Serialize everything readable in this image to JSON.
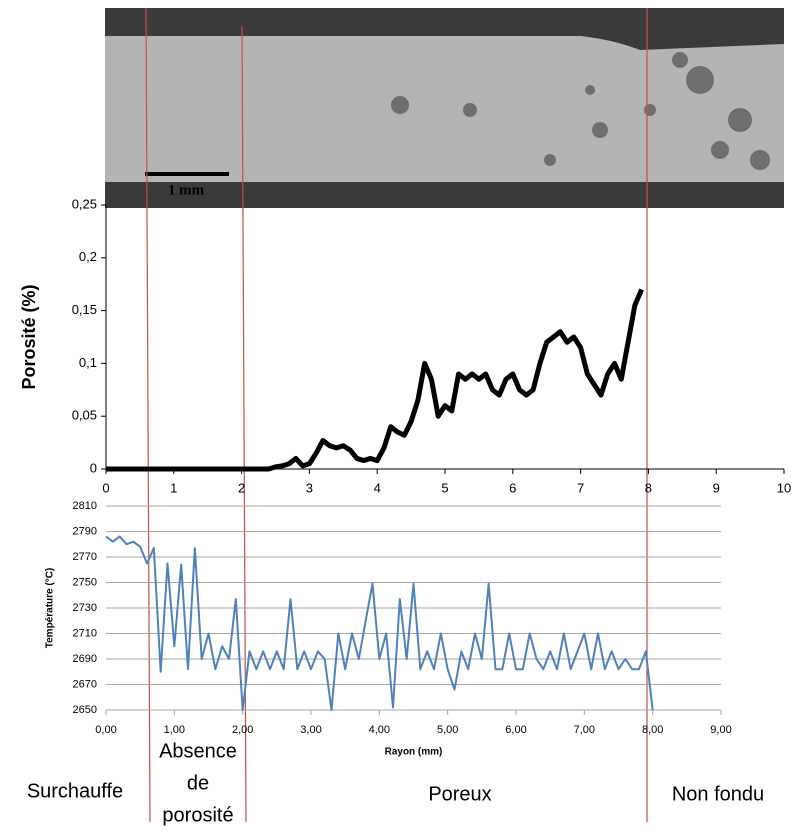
{
  "micrograph": {
    "scale_bar": "1 mm"
  },
  "zones": [
    {
      "lines": [
        "Surchauffe"
      ]
    },
    {
      "lines": [
        "Absence",
        "de",
        "porosité"
      ]
    },
    {
      "lines": [
        "Poreux"
      ]
    },
    {
      "lines": [
        "Non fondu"
      ]
    }
  ],
  "chart_data": [
    {
      "type": "line",
      "y_label": "Porosité (%)",
      "color": "#000000",
      "grid": false,
      "xlim": [
        0,
        10
      ],
      "xticks": [
        0,
        1,
        2,
        3,
        4,
        5,
        6,
        7,
        8,
        9,
        10
      ],
      "ylim": [
        0,
        0.25
      ],
      "yticks": [
        0,
        {
          "value": 0.05,
          "label": "0,05"
        },
        {
          "value": 0.1,
          "label": "0,1"
        },
        {
          "value": 0.15,
          "label": "0,15"
        },
        {
          "value": 0.2,
          "label": "0,2"
        },
        {
          "value": 0.25,
          "label": "0,25"
        }
      ],
      "x": [
        0,
        0.1,
        0.2,
        0.3,
        0.4,
        0.5,
        0.6,
        0.7,
        0.8,
        0.9,
        1,
        1.1,
        1.2,
        1.3,
        1.4,
        1.5,
        1.6,
        1.7,
        1.8,
        1.9,
        2,
        2.1,
        2.2,
        2.3,
        2.4,
        2.5,
        2.6,
        2.7,
        2.8,
        2.9,
        3,
        3.1,
        3.2,
        3.3,
        3.4,
        3.5,
        3.6,
        3.7,
        3.8,
        3.9,
        4,
        4.1,
        4.2,
        4.3,
        4.4,
        4.5,
        4.6,
        4.7,
        4.8,
        4.9,
        5,
        5.1,
        5.2,
        5.3,
        5.4,
        5.5,
        5.6,
        5.7,
        5.8,
        5.9,
        6,
        6.1,
        6.2,
        6.3,
        6.4,
        6.5,
        6.6,
        6.7,
        6.8,
        6.9,
        7,
        7.1,
        7.2,
        7.3,
        7.4,
        7.5,
        7.6,
        7.7,
        7.8,
        7.9
      ],
      "values": [
        0,
        0,
        0,
        0,
        0,
        0,
        0,
        0,
        0,
        0,
        0,
        0,
        0,
        0,
        0,
        0,
        0,
        0,
        0,
        0,
        0,
        0,
        0,
        0,
        0,
        0.002,
        0.003,
        0.005,
        0.01,
        0.003,
        0.005,
        0.015,
        0.027,
        0.022,
        0.02,
        0.022,
        0.018,
        0.01,
        0.008,
        0.01,
        0.008,
        0.02,
        0.04,
        0.035,
        0.032,
        0.045,
        0.065,
        0.1,
        0.085,
        0.05,
        0.06,
        0.055,
        0.09,
        0.085,
        0.09,
        0.085,
        0.09,
        0.075,
        0.07,
        0.085,
        0.09,
        0.075,
        0.07,
        0.075,
        0.1,
        0.12,
        0.125,
        0.13,
        0.12,
        0.125,
        0.115,
        0.09,
        0.08,
        0.07,
        0.09,
        0.1,
        0.085,
        0.12,
        0.155,
        0.17
      ]
    },
    {
      "type": "line",
      "x_label": "Rayon (mm)",
      "y_label": "Température (°C)",
      "color": "#4f81bd",
      "grid": true,
      "xlim": [
        0,
        9
      ],
      "xticks": [
        {
          "value": 0,
          "label": "0,00"
        },
        {
          "value": 1,
          "label": "1,00"
        },
        {
          "value": 2,
          "label": "2,00"
        },
        {
          "value": 3,
          "label": "3,00"
        },
        {
          "value": 4,
          "label": "4,00"
        },
        {
          "value": 5,
          "label": "5,00"
        },
        {
          "value": 6,
          "label": "6,00"
        },
        {
          "value": 7,
          "label": "7,00"
        },
        {
          "value": 8,
          "label": "8,00"
        },
        {
          "value": 9,
          "label": "9,00"
        }
      ],
      "ylim": [
        2650,
        2810
      ],
      "yticks": [
        2650,
        2670,
        2690,
        2710,
        2730,
        2750,
        2770,
        2790,
        2810
      ],
      "x": [
        0,
        0.1,
        0.2,
        0.3,
        0.4,
        0.5,
        0.6,
        0.7,
        0.8,
        0.9,
        1,
        1.1,
        1.2,
        1.3,
        1.4,
        1.5,
        1.6,
        1.7,
        1.8,
        1.9,
        2,
        2.1,
        2.2,
        2.3,
        2.4,
        2.5,
        2.6,
        2.7,
        2.8,
        2.9,
        3,
        3.1,
        3.2,
        3.3,
        3.4,
        3.5,
        3.6,
        3.7,
        3.8,
        3.9,
        4,
        4.1,
        4.2,
        4.3,
        4.4,
        4.5,
        4.6,
        4.7,
        4.8,
        4.9,
        5,
        5.1,
        5.2,
        5.3,
        5.4,
        5.5,
        5.6,
        5.7,
        5.8,
        5.9,
        6,
        6.1,
        6.2,
        6.3,
        6.4,
        6.5,
        6.6,
        6.7,
        6.8,
        6.9,
        7,
        7.1,
        7.2,
        7.3,
        7.4,
        7.5,
        7.6,
        7.7,
        7.8,
        7.9,
        8
      ],
      "values": [
        2786,
        2782,
        2786,
        2780,
        2782,
        2778,
        2765,
        2777,
        2680,
        2765,
        2700,
        2764,
        2682,
        2777,
        2690,
        2710,
        2682,
        2700,
        2690,
        2737,
        2650,
        2696,
        2682,
        2696,
        2682,
        2696,
        2682,
        2737,
        2682,
        2696,
        2682,
        2696,
        2690,
        2650,
        2710,
        2682,
        2710,
        2690,
        2720,
        2749,
        2690,
        2710,
        2652,
        2737,
        2690,
        2749,
        2682,
        2696,
        2682,
        2710,
        2682,
        2666,
        2696,
        2682,
        2710,
        2690,
        2749,
        2682,
        2682,
        2710,
        2682,
        2682,
        2710,
        2690,
        2682,
        2696,
        2682,
        2710,
        2682,
        2696,
        2710,
        2682,
        2710,
        2682,
        2696,
        2682,
        2690,
        2682,
        2682,
        2696,
        2650
      ]
    }
  ]
}
